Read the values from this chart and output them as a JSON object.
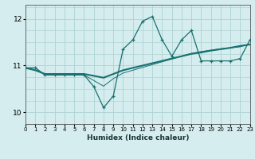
{
  "xlabel": "Humidex (Indice chaleur)",
  "xlim": [
    0,
    23
  ],
  "ylim": [
    9.75,
    12.3
  ],
  "yticks": [
    10,
    11,
    12
  ],
  "xticks": [
    0,
    1,
    2,
    3,
    4,
    5,
    6,
    7,
    8,
    9,
    10,
    11,
    12,
    13,
    14,
    15,
    16,
    17,
    18,
    19,
    20,
    21,
    22,
    23
  ],
  "background_color": "#d5edee",
  "grid_color": "#b0d4d4",
  "line_color": "#1a7070",
  "line1_y": [
    10.95,
    10.95,
    10.8,
    10.8,
    10.8,
    10.8,
    10.8,
    10.55,
    10.1,
    10.35,
    11.35,
    11.55,
    11.95,
    12.05,
    11.55,
    11.2,
    11.55,
    11.75,
    11.1,
    11.1,
    11.1,
    11.1,
    11.15,
    11.55
  ],
  "line2_y": [
    10.95,
    10.9,
    10.82,
    10.82,
    10.82,
    10.82,
    10.82,
    10.78,
    10.74,
    10.82,
    10.9,
    10.95,
    11.0,
    11.05,
    11.1,
    11.15,
    11.2,
    11.25,
    11.28,
    11.32,
    11.35,
    11.38,
    11.42,
    11.45
  ],
  "line3_y": [
    10.95,
    10.95,
    10.8,
    10.8,
    10.8,
    10.8,
    10.8,
    10.68,
    10.56,
    10.72,
    10.84,
    10.9,
    10.96,
    11.02,
    11.08,
    11.14,
    11.2,
    11.26,
    11.3,
    11.33,
    11.36,
    11.38,
    11.4,
    11.46
  ]
}
